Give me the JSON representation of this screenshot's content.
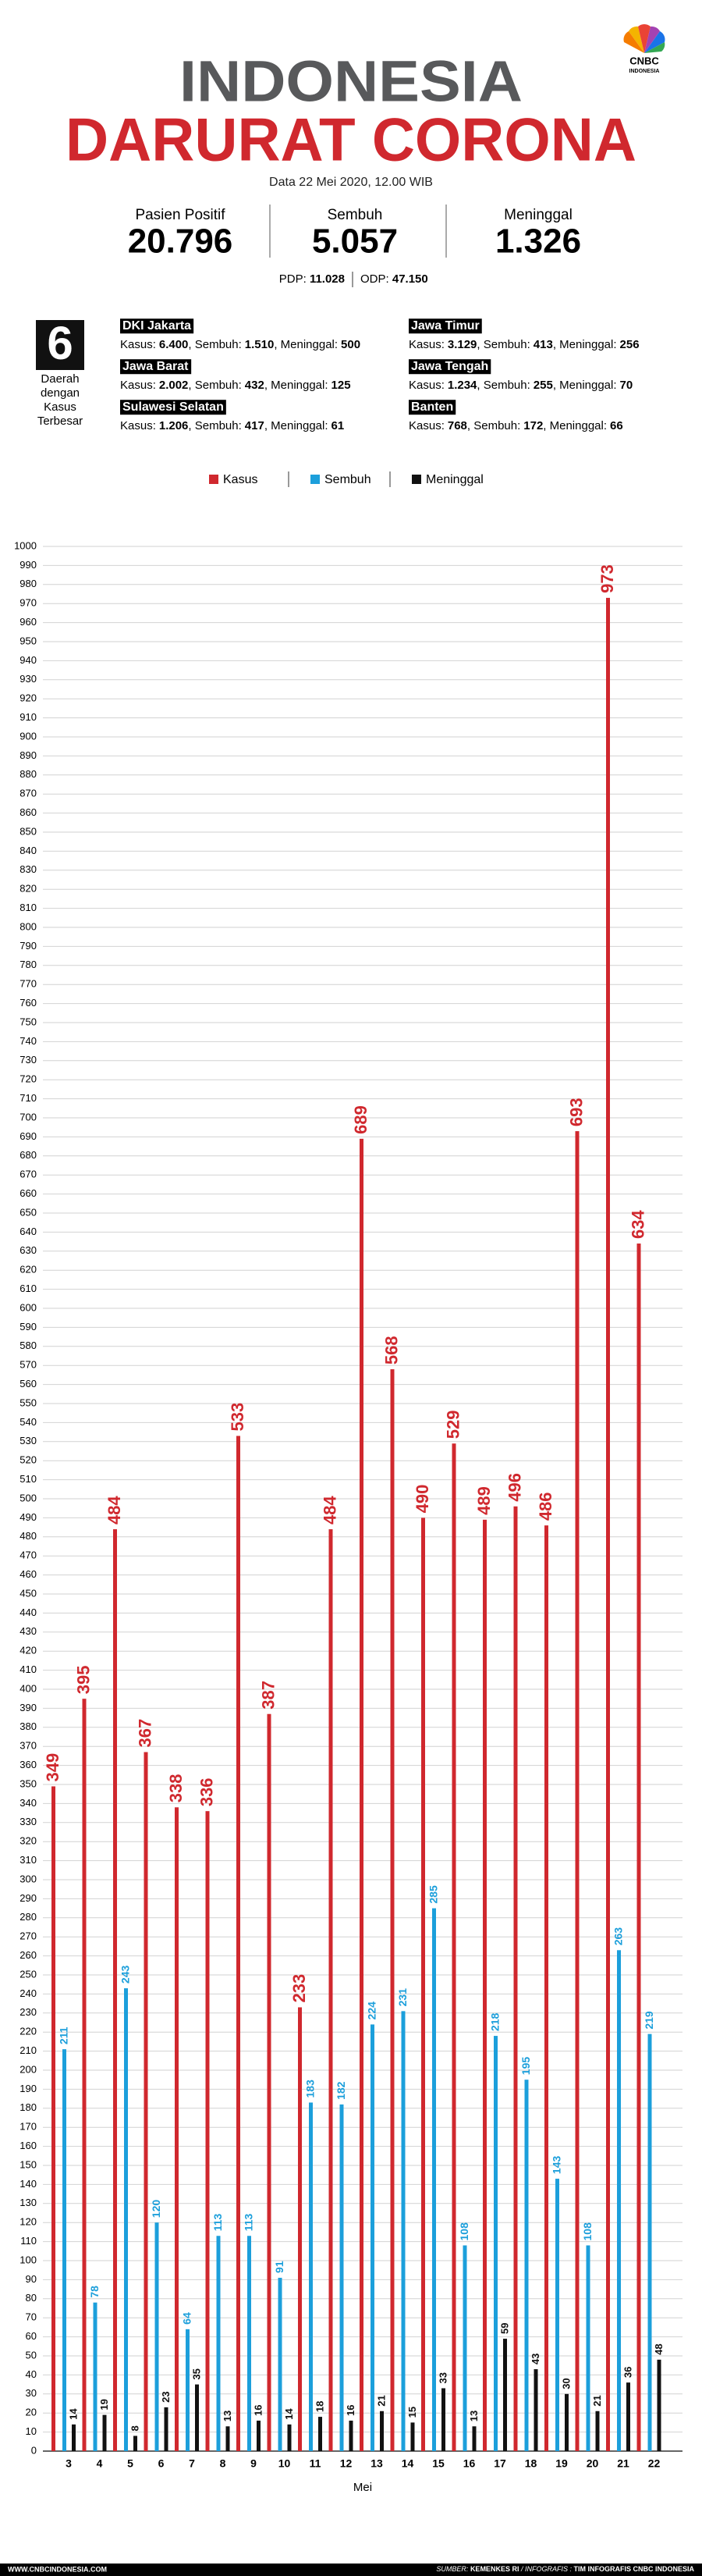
{
  "logo": {
    "name": "CNBC",
    "sub": "INDONESIA"
  },
  "header": {
    "line1": "INDONESIA",
    "line2": "DARURAT CORONA",
    "date": "Data 22 Mei 2020, 12.00 WIB"
  },
  "stats": [
    {
      "label": "Pasien Positif",
      "value": "20.796"
    },
    {
      "label": "Sembuh",
      "value": "5.057"
    },
    {
      "label": "Meninggal",
      "value": "1.326"
    }
  ],
  "pdp": {
    "label": "PDP:",
    "value": "11.028"
  },
  "odp": {
    "label": "ODP:",
    "value": "47.150"
  },
  "regions_box": {
    "number": "6",
    "caption": [
      "Daerah",
      "dengan",
      "Kasus",
      "Terbesar"
    ]
  },
  "region_labels": [
    "Kasus:",
    ", Sembuh:",
    ", Meninggal:"
  ],
  "regions": [
    {
      "name": "DKI Jakarta",
      "kasus": "6.400",
      "sembuh": "1.510",
      "meninggal": "500"
    },
    {
      "name": "Jawa Barat",
      "kasus": "2.002",
      "sembuh": "432",
      "meninggal": "125"
    },
    {
      "name": "Sulawesi Selatan",
      "kasus": "1.206",
      "sembuh": "417",
      "meninggal": "61"
    },
    {
      "name": "Jawa Timur",
      "kasus": "3.129",
      "sembuh": "413",
      "meninggal": "256"
    },
    {
      "name": "Jawa Tengah",
      "kasus": "1.234",
      "sembuh": "255",
      "meninggal": "70"
    },
    {
      "name": "Banten",
      "kasus": "768",
      "sembuh": "172",
      "meninggal": "66"
    }
  ],
  "chart_data": {
    "type": "bar",
    "xlabel": "Mei",
    "categories": [
      "3",
      "4",
      "5",
      "6",
      "7",
      "8",
      "9",
      "10",
      "11",
      "12",
      "13",
      "14",
      "15",
      "16",
      "17",
      "18",
      "19",
      "20",
      "21",
      "22"
    ],
    "series": [
      {
        "name": "Kasus",
        "color": "#d0282e",
        "values": [
          349,
          395,
          484,
          367,
          338,
          336,
          533,
          387,
          233,
          484,
          689,
          568,
          490,
          529,
          489,
          496,
          486,
          693,
          973,
          634
        ]
      },
      {
        "name": "Sembuh",
        "color": "#1c9fdb",
        "values": [
          211,
          78,
          243,
          120,
          64,
          113,
          113,
          91,
          183,
          182,
          224,
          231,
          285,
          108,
          218,
          195,
          143,
          108,
          263,
          219
        ]
      },
      {
        "name": "Meninggal",
        "color": "#111111",
        "values": [
          14,
          19,
          8,
          23,
          35,
          13,
          16,
          14,
          18,
          16,
          21,
          15,
          33,
          13,
          59,
          43,
          30,
          21,
          36,
          48
        ]
      }
    ],
    "ylim": [
      0,
      1000
    ],
    "yticks": [
      0,
      10,
      20,
      30,
      40,
      50,
      60,
      70,
      80,
      90,
      100,
      110,
      120,
      130,
      140,
      150,
      160,
      170,
      180,
      190,
      200,
      210,
      220,
      230,
      240,
      250,
      260,
      270,
      280,
      290,
      300,
      310,
      320,
      330,
      340,
      350,
      360,
      370,
      380,
      390,
      400,
      410,
      420,
      430,
      440,
      450,
      460,
      470,
      480,
      490,
      500,
      510,
      520,
      530,
      540,
      550,
      560,
      570,
      580,
      590,
      600,
      610,
      620,
      630,
      640,
      650,
      660,
      670,
      680,
      690,
      700,
      710,
      720,
      730,
      740,
      750,
      760,
      770,
      780,
      790,
      800,
      810,
      820,
      830,
      840,
      850,
      860,
      870,
      880,
      890,
      900,
      910,
      920,
      930,
      940,
      950,
      960,
      970,
      980,
      990,
      1000
    ],
    "grid": true
  },
  "footer": {
    "site": "WWW.CNBCINDONESIA.COM",
    "source_label": "SUMBER:",
    "source": "KEMENKES RI",
    "credit_label": "/ INFOGRAFIS :",
    "credit": "TIM INFOGRAFIS CNBC INDONESIA"
  }
}
